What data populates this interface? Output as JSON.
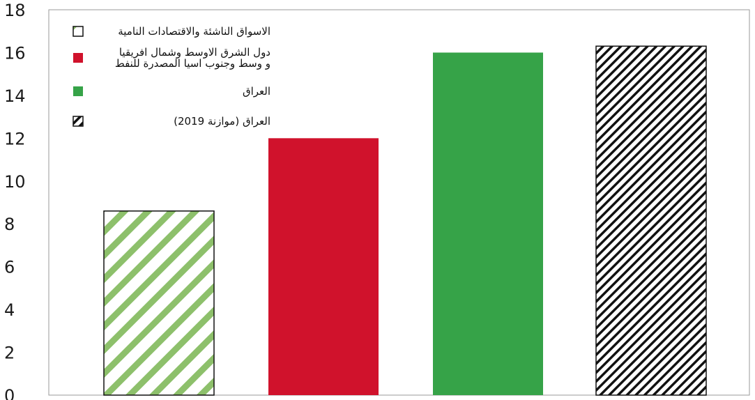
{
  "chart_data": {
    "type": "bar",
    "title": "",
    "xlabel": "",
    "ylabel": "",
    "ylim": [
      0,
      18
    ],
    "yticks": [
      0,
      2,
      4,
      6,
      8,
      10,
      12,
      14,
      16,
      18
    ],
    "grid": false,
    "legend_position": "top-left",
    "series": [
      {
        "name": "الاسواق الناشئة والاقتصادات النامية",
        "value": 8.6,
        "color": "#8dc06b",
        "pattern": "green-diagonal-hatch"
      },
      {
        "name": "دول الشرق الاوسط وشمال افريقيا و وسط وجنوب اسيا المصدرة للنفط",
        "name_lines": [
          "دول الشرق الاوسط وشمال افريقيا",
          "و وسط وجنوب اسيا المصدرة للنفط"
        ],
        "value": 12.0,
        "color": "#d0122c",
        "pattern": "solid"
      },
      {
        "name": "العراق",
        "value": 16.0,
        "color": "#36a348",
        "pattern": "solid"
      },
      {
        "name": "العراق (موازنة 2019)",
        "value": 16.3,
        "color": "#111111",
        "pattern": "black-diagonal-hatch"
      }
    ]
  }
}
